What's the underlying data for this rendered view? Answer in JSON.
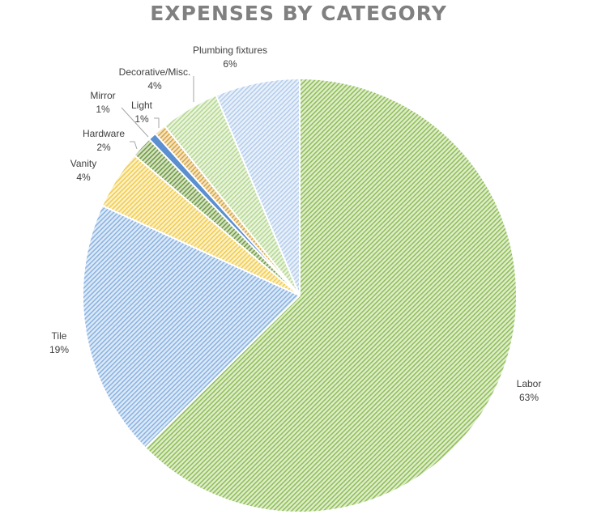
{
  "chart_data": {
    "type": "pie",
    "title": "EXPENSES BY CATEGORY",
    "series": [
      {
        "name": "Labor",
        "percent_label": "63%",
        "value": 62.6,
        "color": "#8fbf55",
        "hatch": true
      },
      {
        "name": "Tile",
        "percent_label": "19%",
        "value": 19.2,
        "color": "#8ab3e2",
        "hatch": true
      },
      {
        "name": "Vanity",
        "percent_label": "4%",
        "value": 4.4,
        "color": "#f2cc4a",
        "hatch": true
      },
      {
        "name": "Hardware",
        "percent_label": "2%",
        "value": 1.6,
        "color": "#6f9a3e",
        "hatch": true
      },
      {
        "name": "Mirror",
        "percent_label": "1%",
        "value": 0.6,
        "color": "#5b8fd0",
        "hatch": false
      },
      {
        "name": "Light",
        "percent_label": "1%",
        "value": 0.9,
        "color": "#d9a43c",
        "hatch": true
      },
      {
        "name": "Decorative/Misc.",
        "percent_label": "4%",
        "value": 4.4,
        "color": "#b5d88f",
        "hatch": true
      },
      {
        "name": "Plumbing fixtures",
        "percent_label": "6%",
        "value": 6.3,
        "color": "#b3cdec",
        "hatch": true
      }
    ],
    "legend": "none",
    "data_labels": "category-and-percent"
  }
}
